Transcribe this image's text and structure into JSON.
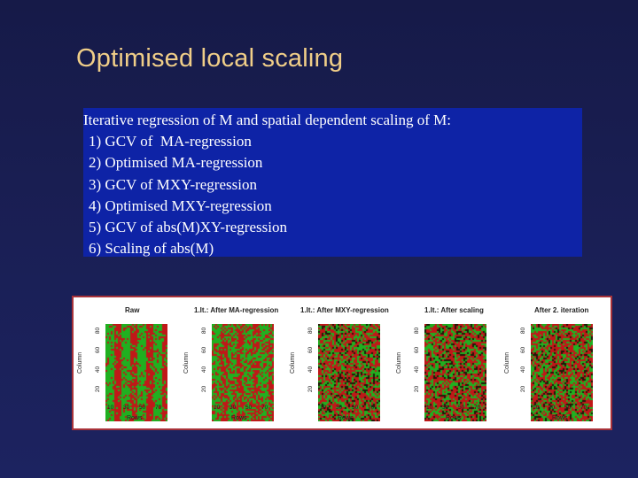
{
  "slide": {
    "title": "Optimised local scaling",
    "intro": "Iterative regression of M and spatial dependent scaling of M:",
    "items": [
      "1) GCV of  MA-regression",
      "2) Optimised MA-regression",
      "3) GCV of MXY-regression",
      "4) Optimised MXY-regression",
      "5) GCV of abs(M)XY-regression",
      "6) Scaling of abs(M)"
    ]
  },
  "figure": {
    "panels": [
      {
        "title": "Raw",
        "pattern": "stripes"
      },
      {
        "title": "1.It.: After MA-regression",
        "pattern": "stripes-soft"
      },
      {
        "title": "1.It.: After MXY-regression",
        "pattern": "mixed"
      },
      {
        "title": "1.It.: After scaling",
        "pattern": "mixed"
      },
      {
        "title": "After 2. iteration",
        "pattern": "mixed"
      }
    ],
    "ylabel": "Column",
    "xlabel": "Rows",
    "xticks": [
      "10",
      "30",
      "50",
      "70"
    ],
    "yticks": [
      "20",
      "40",
      "60",
      "80"
    ],
    "colors": {
      "red": "#c01818",
      "green": "#20b020",
      "dark": "#201808"
    }
  }
}
